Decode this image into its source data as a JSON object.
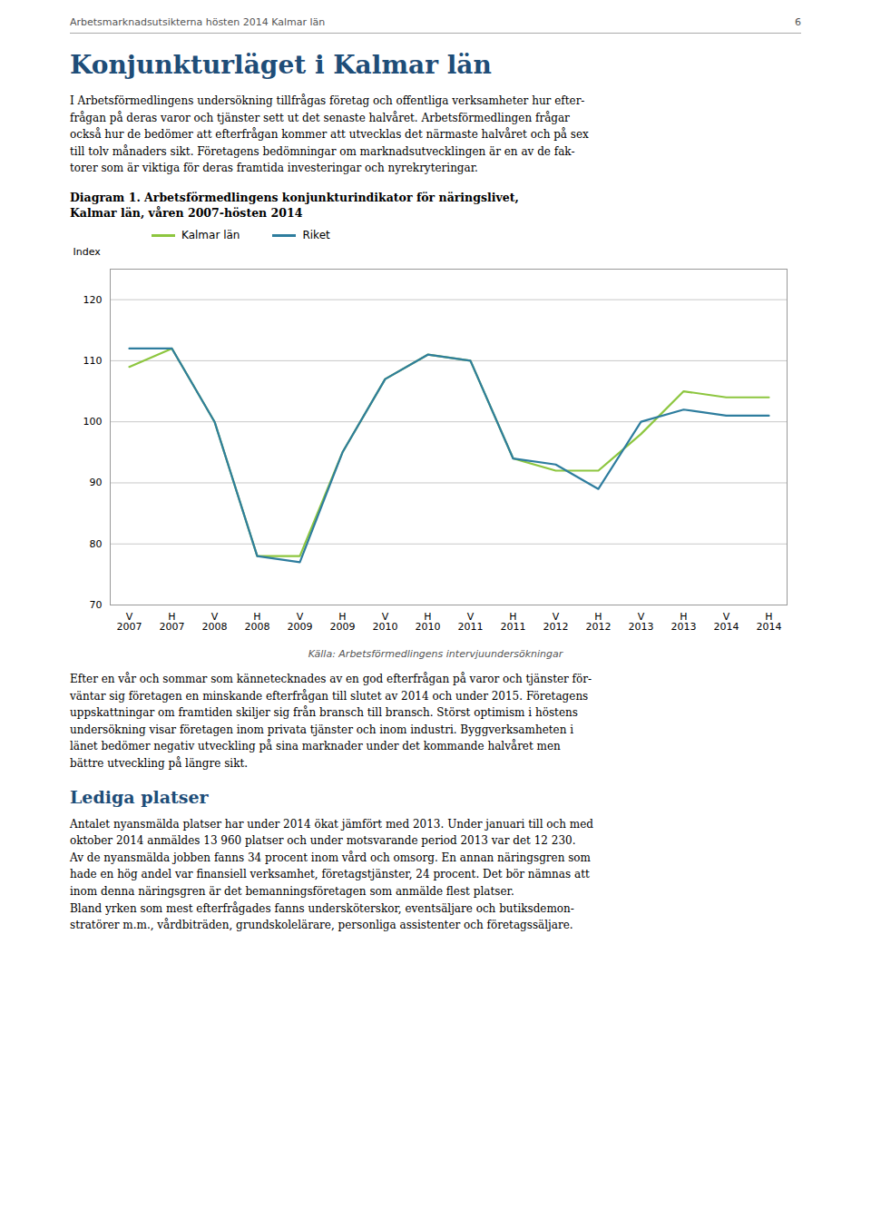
{
  "header_text": "Arbetsmarknadsutsikterna hösten 2014 Kalmar län",
  "page_number": "6",
  "main_title": "Konjunkturläget i Kalmar län",
  "body1": "I Arbetsförmedlingens undersökning tillfrågas företag och offentliga verksamheter hur efter-\nfrågan på deras varor och tjänster sett ut det senaste halvåret. Arbetsförmedlingen frågar\nockså hur de bedömer att efterfrågan kommer att utvecklas det närmaste halvåret och på sex\ntill tolv månaders sikt. Företagens bedömningar om marknadsutvecklingen är en av de fak-\ntorer som är viktiga för deras framtida investeringar och nyrekryteringar.",
  "chart_data": {
    "type": "line",
    "title": "Diagram 1. Arbetsförmedlingens konjunkturindikator för näringslivet,\nKalmar län, våren 2007-hösten 2014",
    "y_label": "Index",
    "source": "Källa: Arbetsförmedlingens intervjuundersökningar",
    "categories": [
      "V\n2007",
      "H\n2007",
      "V\n2008",
      "H\n2008",
      "V\n2009",
      "H\n2009",
      "V\n2010",
      "H\n2010",
      "V\n2011",
      "H\n2011",
      "V\n2012",
      "H\n2012",
      "V\n2013",
      "H\n2013",
      "V\n2014",
      "H\n2014"
    ],
    "series": [
      {
        "name": "Kalmar län",
        "color": "#8dc63f",
        "values": [
          109,
          112,
          100,
          78,
          78,
          95,
          107,
          111,
          110,
          94,
          92,
          92,
          98,
          105,
          104,
          104
        ]
      },
      {
        "name": "Riket",
        "color": "#2e7d9e",
        "values": [
          112,
          112,
          100,
          78,
          77,
          95,
          107,
          111,
          110,
          94,
          93,
          89,
          100,
          102,
          101,
          101
        ]
      }
    ],
    "ylim": [
      70,
      125
    ],
    "yticks": [
      70,
      80,
      90,
      100,
      110,
      120
    ],
    "grid": true,
    "legend": "top"
  },
  "body2": "Efter en vår och sommar som kännetecknades av en god efterfrågan på varor och tjänster för-\nväntar sig företagen en minskande efterfrågan till slutet av 2014 och under 2015. Företagens\nuppskattningar om framtiden skiljer sig från bransch till bransch. Störst optimism i höstens\nundersökning visar företagen inom privata tjänster och inom industri. Byggverksamheten i\nlänet bedömer negativ utveckling på sina marknader under det kommande halvåret men\nbättre utveckling på längre sikt.",
  "section_title": "Lediga platser",
  "body3": "Antalet nyansmälda platser har under 2014 ökat jämfört med 2013. Under januari till och med\noktober 2014 anmäldes 13 960 platser och under motsvarande period 2013 var det 12 230.\nAv de nyansmälda jobben fanns 34 procent inom vård och omsorg. En annan näringsgren som\nhade en hög andel var finansiell verksamhet, företagstjänster, 24 procent. Det bör nämnas att\ninom denna näringsgren är det bemanningsföretagen som anmälde flest platser.\nBland yrken som mest efterfrågades fanns undersköterskor, eventsäljare och butiksdemon-\nstratörer m.m., vårdbiträden, grundskolelärare, personliga assistenter och företagssäljare."
}
